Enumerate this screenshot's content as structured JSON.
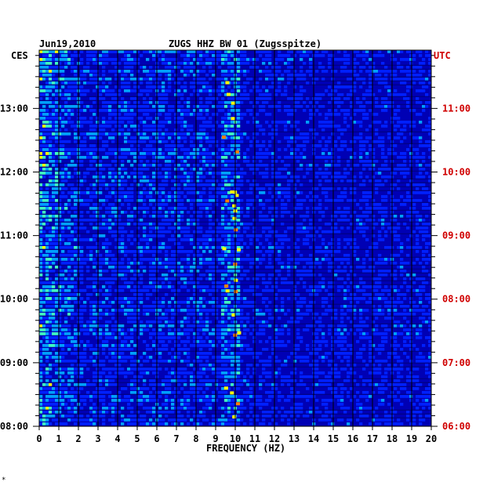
{
  "chart_data": {
    "type": "heatmap",
    "title_date": "Jun19,2010",
    "title_station": "ZUGS HHZ BW 01 (Zugsspitze)",
    "left_tz": "CES",
    "right_tz": "UTC",
    "xlabel": "FREQUENCY (HZ)",
    "xlim": [
      0,
      20
    ],
    "x_ticks": [
      "0",
      "1",
      "2",
      "3",
      "4",
      "5",
      "6",
      "7",
      "8",
      "9",
      "10",
      "11",
      "12",
      "13",
      "14",
      "15",
      "16",
      "17",
      "18",
      "19",
      "20"
    ],
    "left_time_ticks": [
      "08:00",
      "09:00",
      "10:00",
      "11:00",
      "12:00",
      "13:00"
    ],
    "right_time_ticks": [
      "06:00",
      "07:00",
      "08:00",
      "09:00",
      "10:00",
      "11:00"
    ],
    "time_range_ces": [
      "08:00",
      "13:55"
    ],
    "colormap": [
      "#0000a0",
      "#0020ff",
      "#00a0ff",
      "#40ffc0",
      "#ffff00",
      "#ff8000",
      "#c00000"
    ],
    "background_color": "#0000b4",
    "right_label_color": "#d00000",
    "footnote": "*"
  }
}
